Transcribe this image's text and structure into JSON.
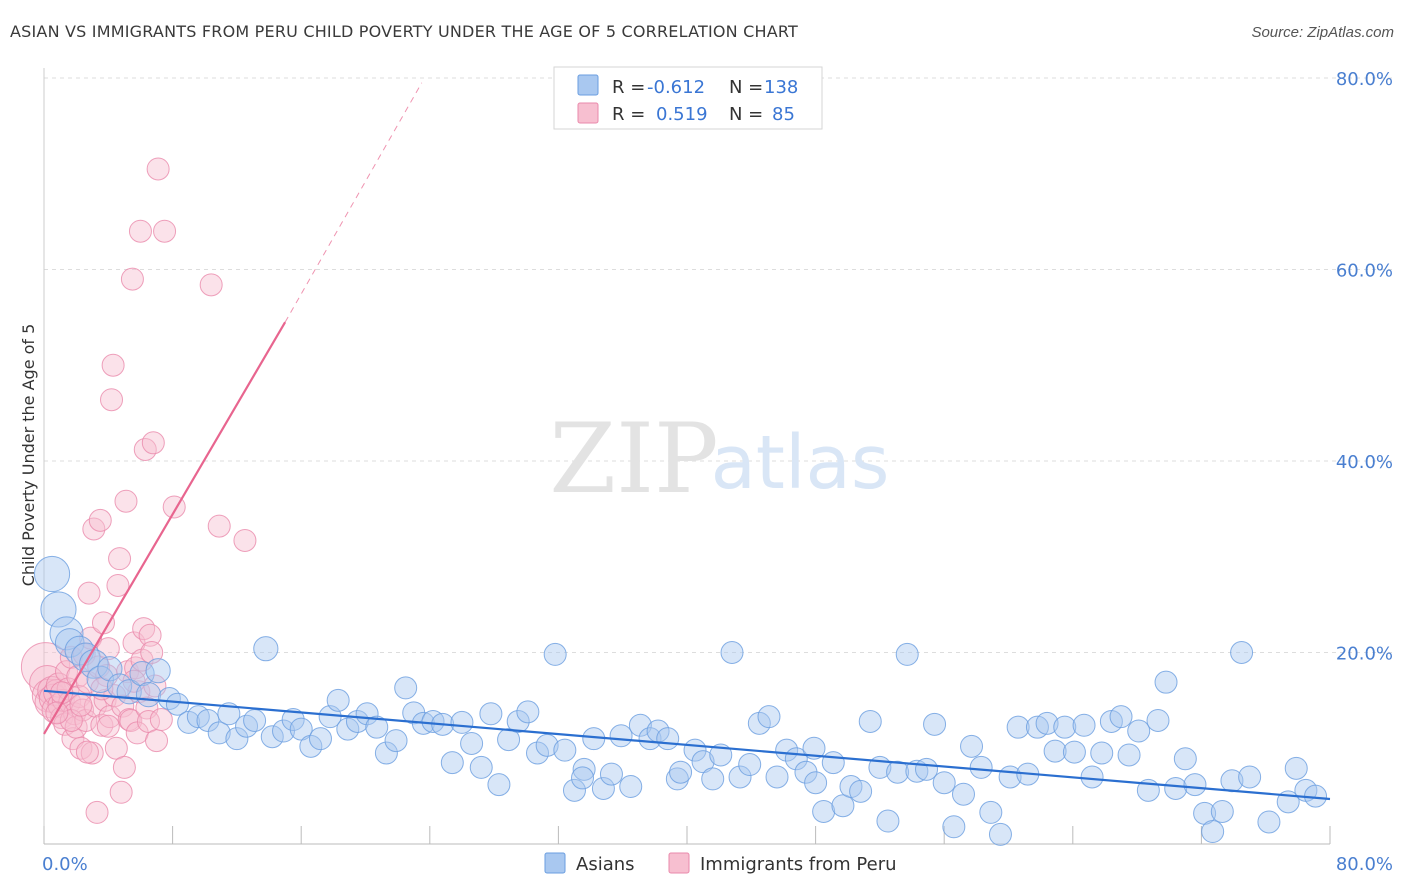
{
  "title": "ASIAN VS IMMIGRANTS FROM PERU CHILD POVERTY UNDER THE AGE OF 5 CORRELATION CHART",
  "source": "Source: ZipAtlas.com",
  "watermark": {
    "zip": "ZIP",
    "atlas": "atlas"
  },
  "colors": {
    "asian_fill": "#a9c8f0",
    "asian_stroke": "#6a9ee0",
    "asian_line": "#2b6fd0",
    "peru_fill": "#f7bfd0",
    "peru_stroke": "#ea8aab",
    "peru_line": "#e8658f",
    "tick": "#4a7fd0",
    "grid": "#dddddd"
  },
  "legend": {
    "r_label": "R =",
    "n_label": "N =",
    "rows": [
      {
        "r": "-0.612",
        "n": "138"
      },
      {
        "r": "0.519",
        "n": "85"
      }
    ]
  },
  "chart_data": {
    "type": "scatter",
    "title": "ASIAN VS IMMIGRANTS FROM PERU CHILD POVERTY UNDER THE AGE OF 5 CORRELATION CHART",
    "xlabel": "",
    "ylabel": "Child Poverty Under the Age of 5",
    "xlim": [
      0,
      80
    ],
    "ylim": [
      0,
      80
    ],
    "x_tick_labels": [
      "0.0%",
      "80.0%"
    ],
    "y_tick_labels": [
      "20.0%",
      "40.0%",
      "60.0%",
      "80.0%"
    ],
    "y_ticks": [
      20,
      40,
      60,
      80
    ],
    "grid": true,
    "legend_position": "top-center",
    "series": [
      {
        "name": "Asians",
        "r": -0.612,
        "n": 138,
        "trend": {
          "x": [
            0,
            80
          ],
          "y": [
            16.0,
            4.7
          ]
        },
        "points": [
          [
            0.5,
            28.2,
            1.6
          ],
          [
            0.9,
            24.5,
            1.6
          ],
          [
            1.4,
            22.0,
            1.5
          ],
          [
            1.6,
            21.0,
            1.3
          ],
          [
            2.2,
            20.2,
            1.3
          ],
          [
            2.6,
            19.5,
            1.3
          ],
          [
            3.1,
            18.8,
            1.3
          ],
          [
            3.5,
            17.2,
            1.2
          ],
          [
            4.1,
            18.3,
            1.1
          ],
          [
            4.7,
            16.5,
            1.1
          ],
          [
            5.3,
            15.9,
            1.1
          ],
          [
            6.1,
            17.8,
            1.1
          ],
          [
            6.5,
            15.6,
            1.1
          ],
          [
            7.1,
            18.1,
            1.1
          ],
          [
            7.8,
            15.2,
            1.0
          ],
          [
            8.3,
            14.6,
            1.0
          ],
          [
            9.0,
            12.7,
            1.0
          ],
          [
            9.6,
            13.3,
            1.0
          ],
          [
            10.2,
            12.9,
            1.0
          ],
          [
            10.9,
            11.6,
            1.0
          ],
          [
            11.5,
            13.6,
            1.0
          ],
          [
            12.0,
            11.0,
            1.0
          ],
          [
            12.6,
            12.3,
            1.0
          ],
          [
            13.1,
            12.9,
            1.0
          ],
          [
            13.8,
            20.4,
            1.1
          ],
          [
            14.2,
            11.2,
            1.0
          ],
          [
            14.9,
            11.8,
            1.0
          ],
          [
            15.5,
            13.0,
            1.0
          ],
          [
            16.0,
            12.0,
            1.0
          ],
          [
            16.6,
            10.2,
            1.0
          ],
          [
            17.2,
            11.0,
            1.0
          ],
          [
            17.8,
            13.3,
            1.0
          ],
          [
            18.3,
            15.0,
            1.0
          ],
          [
            18.9,
            12.0,
            1.0
          ],
          [
            19.5,
            12.8,
            1.0
          ],
          [
            20.1,
            13.6,
            1.0
          ],
          [
            20.7,
            12.2,
            1.0
          ],
          [
            21.3,
            9.5,
            1.0
          ],
          [
            21.9,
            10.8,
            1.0
          ],
          [
            22.5,
            16.3,
            1.0
          ],
          [
            23.0,
            13.7,
            1.0
          ],
          [
            23.6,
            12.6,
            1.0
          ],
          [
            24.2,
            12.8,
            1.0
          ],
          [
            24.8,
            12.5,
            1.0
          ],
          [
            25.4,
            8.5,
            1.0
          ],
          [
            26.0,
            12.7,
            1.0
          ],
          [
            26.6,
            10.5,
            1.0
          ],
          [
            27.2,
            8.0,
            1.0
          ],
          [
            27.8,
            13.6,
            1.0
          ],
          [
            28.3,
            6.2,
            1.0
          ],
          [
            28.9,
            10.9,
            1.0
          ],
          [
            29.5,
            12.8,
            1.0
          ],
          [
            30.1,
            13.8,
            1.0
          ],
          [
            30.7,
            9.5,
            1.0
          ],
          [
            31.3,
            10.3,
            1.0
          ],
          [
            31.8,
            19.8,
            1.0
          ],
          [
            32.4,
            9.8,
            1.0
          ],
          [
            33.0,
            5.6,
            1.0
          ],
          [
            33.6,
            7.8,
            1.0
          ],
          [
            34.2,
            11.0,
            1.0
          ],
          [
            34.8,
            5.8,
            1.0
          ],
          [
            35.3,
            7.3,
            1.0
          ],
          [
            35.9,
            11.3,
            1.0
          ],
          [
            36.5,
            6.0,
            1.0
          ],
          [
            37.1,
            12.4,
            1.0
          ],
          [
            37.7,
            11.0,
            1.0
          ],
          [
            38.2,
            11.8,
            1.0
          ],
          [
            38.8,
            11.0,
            1.0
          ],
          [
            39.4,
            6.8,
            1.0
          ],
          [
            39.6,
            7.5,
            1.0
          ],
          [
            40.5,
            9.8,
            1.0
          ],
          [
            41.0,
            8.6,
            1.0
          ],
          [
            41.6,
            6.8,
            1.0
          ],
          [
            42.1,
            9.3,
            1.0
          ],
          [
            42.8,
            20.0,
            1.0
          ],
          [
            43.3,
            7.0,
            1.0
          ],
          [
            43.9,
            8.3,
            1.0
          ],
          [
            44.5,
            12.6,
            1.0
          ],
          [
            45.1,
            13.3,
            1.0
          ],
          [
            45.6,
            7.0,
            1.0
          ],
          [
            46.2,
            9.8,
            1.0
          ],
          [
            46.8,
            8.9,
            1.0
          ],
          [
            47.4,
            7.5,
            1.0
          ],
          [
            47.9,
            10.0,
            1.0
          ],
          [
            48.5,
            3.4,
            1.0
          ],
          [
            49.1,
            8.5,
            1.0
          ],
          [
            49.7,
            4.0,
            1.0
          ],
          [
            50.2,
            6.0,
            1.0
          ],
          [
            50.8,
            5.5,
            1.0
          ],
          [
            51.4,
            12.8,
            1.0
          ],
          [
            52.0,
            8.0,
            1.0
          ],
          [
            52.5,
            2.4,
            1.0
          ],
          [
            53.1,
            7.5,
            1.0
          ],
          [
            53.7,
            19.8,
            1.0
          ],
          [
            54.3,
            7.6,
            1.0
          ],
          [
            54.9,
            7.8,
            1.0
          ],
          [
            55.4,
            12.5,
            1.0
          ],
          [
            56.0,
            6.4,
            1.0
          ],
          [
            56.6,
            1.8,
            1.0
          ],
          [
            57.2,
            5.2,
            1.0
          ],
          [
            57.7,
            10.2,
            1.0
          ],
          [
            58.3,
            8.0,
            1.0
          ],
          [
            58.9,
            3.3,
            1.0
          ],
          [
            59.5,
            1.0,
            1.0
          ],
          [
            60.1,
            7.0,
            1.0
          ],
          [
            60.6,
            12.2,
            1.0
          ],
          [
            61.2,
            7.3,
            1.0
          ],
          [
            61.8,
            12.2,
            1.0
          ],
          [
            62.4,
            12.6,
            1.0
          ],
          [
            62.9,
            9.7,
            1.0
          ],
          [
            63.5,
            12.2,
            1.0
          ],
          [
            64.1,
            9.6,
            1.0
          ],
          [
            64.7,
            12.4,
            1.0
          ],
          [
            65.2,
            7.0,
            1.0
          ],
          [
            65.8,
            9.5,
            1.0
          ],
          [
            66.4,
            12.8,
            1.0
          ],
          [
            67.0,
            13.3,
            1.0
          ],
          [
            67.5,
            9.3,
            1.0
          ],
          [
            68.1,
            11.8,
            1.0
          ],
          [
            68.7,
            5.6,
            1.0
          ],
          [
            69.3,
            12.9,
            1.0
          ],
          [
            69.8,
            16.9,
            1.0
          ],
          [
            70.4,
            5.8,
            1.0
          ],
          [
            71.0,
            8.9,
            1.0
          ],
          [
            71.6,
            6.2,
            1.0
          ],
          [
            72.2,
            3.2,
            1.0
          ],
          [
            72.7,
            1.3,
            1.0
          ],
          [
            73.3,
            3.4,
            1.0
          ],
          [
            73.9,
            6.6,
            1.0
          ],
          [
            74.5,
            20.0,
            1.0
          ],
          [
            75.0,
            7.0,
            1.0
          ],
          [
            76.2,
            2.3,
            1.0
          ],
          [
            77.4,
            4.4,
            1.0
          ],
          [
            77.9,
            7.9,
            1.0
          ],
          [
            78.5,
            5.6,
            1.0
          ],
          [
            79.1,
            5.0,
            1.0
          ],
          [
            33.5,
            6.9,
            1.0
          ],
          [
            48.0,
            6.4,
            1.0
          ]
        ]
      },
      {
        "name": "Immigrants from Peru",
        "r": 0.519,
        "n": 85,
        "trend": {
          "x": [
            0,
            15
          ],
          "y": [
            11.5,
            54.5
          ],
          "ext_x": [
            15,
            23.5
          ],
          "ext_y": [
            54.5,
            79.5
          ]
        },
        "points": [
          [
            0.1,
            18.5,
            2.2
          ],
          [
            0.2,
            16.8,
            1.6
          ],
          [
            0.3,
            15.5,
            1.5
          ],
          [
            0.4,
            14.8,
            1.4
          ],
          [
            0.5,
            16.0,
            1.3
          ],
          [
            0.6,
            15.2,
            1.3
          ],
          [
            0.7,
            14.0,
            1.2
          ],
          [
            0.8,
            15.8,
            1.2
          ],
          [
            0.9,
            16.6,
            1.1
          ],
          [
            1.0,
            14.5,
            1.1
          ],
          [
            1.1,
            13.2,
            1.0
          ],
          [
            1.2,
            15.0,
            1.0
          ],
          [
            1.3,
            12.5,
            1.0
          ],
          [
            1.4,
            18.0,
            1.0
          ],
          [
            1.5,
            16.2,
            1.0
          ],
          [
            1.6,
            14.8,
            1.0
          ],
          [
            1.7,
            19.5,
            1.0
          ],
          [
            1.8,
            11.0,
            1.0
          ],
          [
            1.9,
            13.6,
            1.0
          ],
          [
            2.0,
            12.2,
            1.0
          ],
          [
            2.1,
            17.5,
            1.0
          ],
          [
            2.2,
            15.4,
            1.0
          ],
          [
            2.3,
            10.0,
            1.0
          ],
          [
            2.4,
            14.0,
            1.0
          ],
          [
            2.5,
            19.8,
            1.0
          ],
          [
            2.6,
            12.9,
            1.0
          ],
          [
            2.7,
            16.9,
            1.0
          ],
          [
            2.8,
            26.2,
            1.0
          ],
          [
            2.9,
            21.5,
            1.0
          ],
          [
            3.0,
            9.5,
            1.0
          ],
          [
            3.1,
            32.9,
            1.0
          ],
          [
            3.2,
            14.4,
            1.0
          ],
          [
            3.3,
            3.3,
            1.0
          ],
          [
            3.4,
            18.5,
            1.0
          ],
          [
            3.5,
            33.8,
            1.0
          ],
          [
            3.6,
            12.4,
            1.0
          ],
          [
            3.7,
            23.1,
            1.0
          ],
          [
            3.8,
            15.0,
            1.0
          ],
          [
            3.9,
            17.6,
            1.0
          ],
          [
            4.0,
            20.4,
            1.0
          ],
          [
            4.1,
            13.3,
            1.0
          ],
          [
            4.2,
            46.4,
            1.0
          ],
          [
            4.3,
            50.0,
            1.0
          ],
          [
            4.4,
            15.5,
            1.0
          ],
          [
            4.5,
            10.0,
            1.0
          ],
          [
            4.6,
            27.0,
            1.0
          ],
          [
            4.7,
            29.8,
            1.0
          ],
          [
            4.8,
            5.4,
            1.0
          ],
          [
            4.9,
            14.4,
            1.0
          ],
          [
            5.0,
            8.0,
            1.0
          ],
          [
            5.1,
            35.8,
            1.0
          ],
          [
            5.2,
            18.0,
            1.0
          ],
          [
            5.3,
            13.0,
            1.0
          ],
          [
            5.4,
            12.9,
            1.0
          ],
          [
            5.5,
            59.0,
            1.0
          ],
          [
            5.6,
            21.0,
            1.0
          ],
          [
            5.7,
            18.4,
            1.0
          ],
          [
            5.8,
            11.6,
            1.0
          ],
          [
            5.9,
            15.9,
            1.0
          ],
          [
            6.0,
            64.0,
            1.0
          ],
          [
            6.1,
            19.2,
            1.0
          ],
          [
            6.2,
            22.5,
            1.0
          ],
          [
            6.3,
            41.2,
            1.0
          ],
          [
            6.4,
            14.2,
            1.0
          ],
          [
            6.5,
            12.8,
            1.0
          ],
          [
            6.6,
            21.8,
            1.0
          ],
          [
            6.7,
            20.0,
            1.0
          ],
          [
            6.8,
            41.9,
            1.0
          ],
          [
            6.9,
            16.5,
            1.0
          ],
          [
            7.0,
            10.8,
            1.0
          ],
          [
            7.1,
            70.5,
            1.0
          ],
          [
            7.3,
            13.0,
            1.0
          ],
          [
            7.5,
            64.0,
            1.0
          ],
          [
            8.1,
            35.2,
            1.0
          ],
          [
            10.4,
            58.4,
            1.0
          ],
          [
            10.9,
            33.2,
            1.0
          ],
          [
            12.5,
            31.7,
            1.0
          ],
          [
            3.6,
            16.2,
            1.0
          ],
          [
            2.7,
            9.6,
            1.0
          ],
          [
            1.7,
            12.9,
            1.0
          ],
          [
            2.3,
            14.5,
            1.0
          ],
          [
            1.1,
            15.8,
            1.0
          ],
          [
            0.8,
            13.7,
            1.0
          ],
          [
            4.0,
            12.3,
            1.0
          ],
          [
            5.6,
            17.0,
            1.0
          ]
        ]
      }
    ]
  }
}
